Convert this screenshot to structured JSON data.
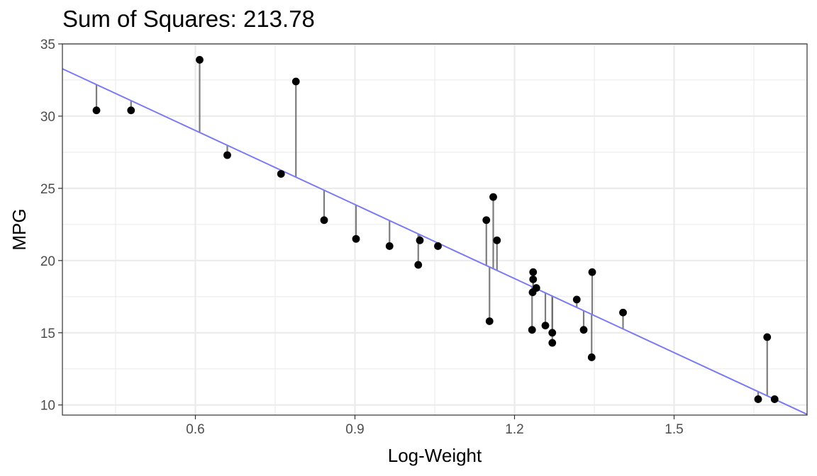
{
  "chart_data": {
    "type": "scatter",
    "title": "Sum of Squares: 213.78",
    "xlabel": "Log-Weight",
    "ylabel": "MPG",
    "xlim": [
      0.35,
      1.75
    ],
    "ylim": [
      9.3,
      35.0
    ],
    "x_ticks": [
      0.6,
      0.9,
      1.2,
      1.5
    ],
    "x_tick_labels": [
      "0.6",
      "0.9",
      "1.2",
      "1.5"
    ],
    "y_ticks": [
      10,
      15,
      20,
      25,
      30,
      35
    ],
    "y_tick_labels": [
      "10",
      "15",
      "20",
      "25",
      "30",
      "35"
    ],
    "grid": true,
    "fit_line": {
      "intercept": 39.26,
      "slope": -17.09
    },
    "colors": {
      "line": "#7b7bf0",
      "points": "#000000",
      "segments": "#666666",
      "grid": "#ebebeb"
    },
    "points": [
      {
        "x": 0.414,
        "y": 30.4
      },
      {
        "x": 0.479,
        "y": 30.4
      },
      {
        "x": 0.608,
        "y": 33.9
      },
      {
        "x": 0.66,
        "y": 27.3
      },
      {
        "x": 0.761,
        "y": 26.0
      },
      {
        "x": 0.789,
        "y": 32.4
      },
      {
        "x": 0.842,
        "y": 22.8
      },
      {
        "x": 0.902,
        "y": 21.5
      },
      {
        "x": 0.965,
        "y": 21.0
      },
      {
        "x": 1.019,
        "y": 19.7
      },
      {
        "x": 1.022,
        "y": 21.4
      },
      {
        "x": 1.056,
        "y": 21.0
      },
      {
        "x": 1.147,
        "y": 22.8
      },
      {
        "x": 1.153,
        "y": 15.8
      },
      {
        "x": 1.16,
        "y": 24.4
      },
      {
        "x": 1.167,
        "y": 21.4
      },
      {
        "x": 1.233,
        "y": 15.2
      },
      {
        "x": 1.234,
        "y": 17.8
      },
      {
        "x": 1.235,
        "y": 19.2
      },
      {
        "x": 1.235,
        "y": 18.7
      },
      {
        "x": 1.241,
        "y": 18.1
      },
      {
        "x": 1.258,
        "y": 15.5
      },
      {
        "x": 1.271,
        "y": 15.0
      },
      {
        "x": 1.271,
        "y": 14.3
      },
      {
        "x": 1.317,
        "y": 17.3
      },
      {
        "x": 1.33,
        "y": 15.2
      },
      {
        "x": 1.345,
        "y": 13.3
      },
      {
        "x": 1.346,
        "y": 19.2
      },
      {
        "x": 1.404,
        "y": 16.4
      },
      {
        "x": 1.658,
        "y": 10.4
      },
      {
        "x": 1.675,
        "y": 14.7
      },
      {
        "x": 1.689,
        "y": 10.4
      }
    ]
  }
}
